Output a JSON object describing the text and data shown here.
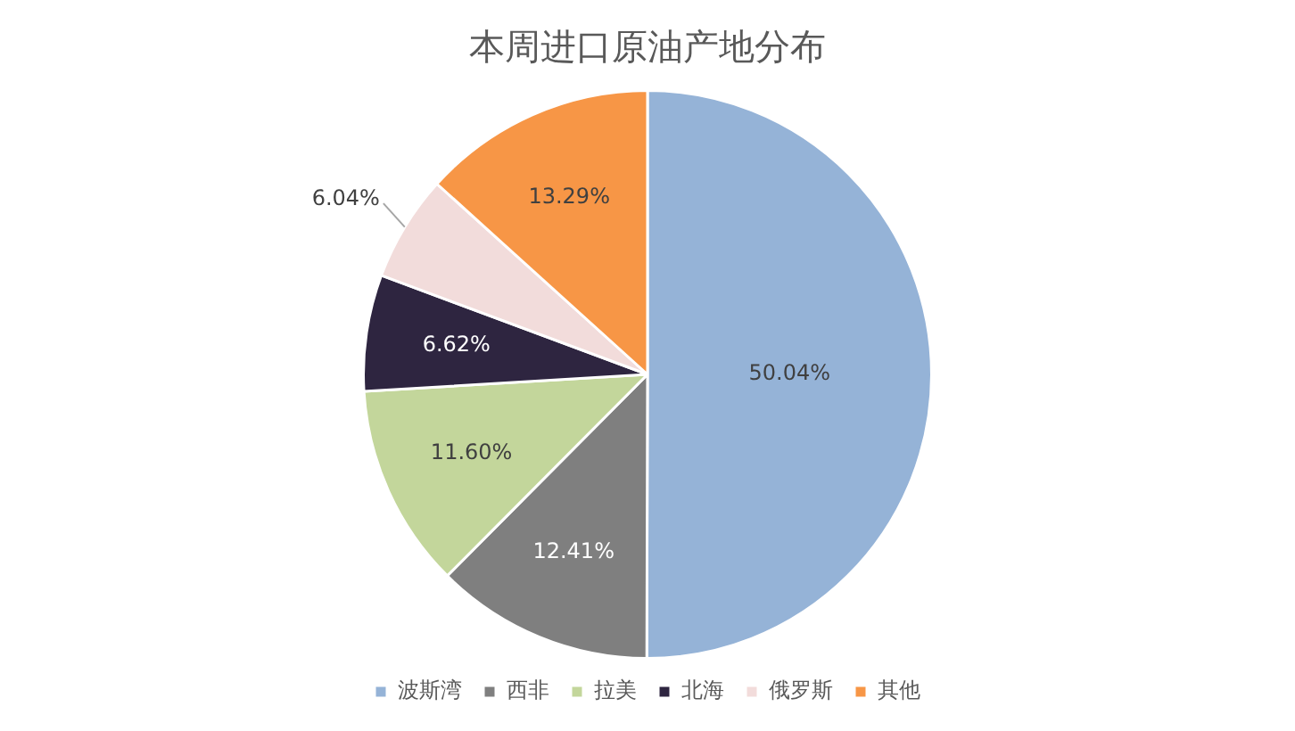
{
  "chart_data": {
    "type": "pie",
    "title": "本周进口原油产地分布",
    "categories": [
      "波斯湾",
      "西非",
      "拉美",
      "北海",
      "俄罗斯",
      "其他"
    ],
    "values": [
      50.04,
      12.41,
      11.6,
      6.62,
      6.04,
      13.29
    ],
    "value_labels": [
      "50.04%",
      "12.41%",
      "11.60%",
      "6.62%",
      "6.04%",
      "13.29%"
    ],
    "colors": [
      "#95b3d7",
      "#7f7f7f",
      "#c3d69b",
      "#2e2540",
      "#f2dcdb",
      "#f79646"
    ],
    "legend": "bottom"
  }
}
